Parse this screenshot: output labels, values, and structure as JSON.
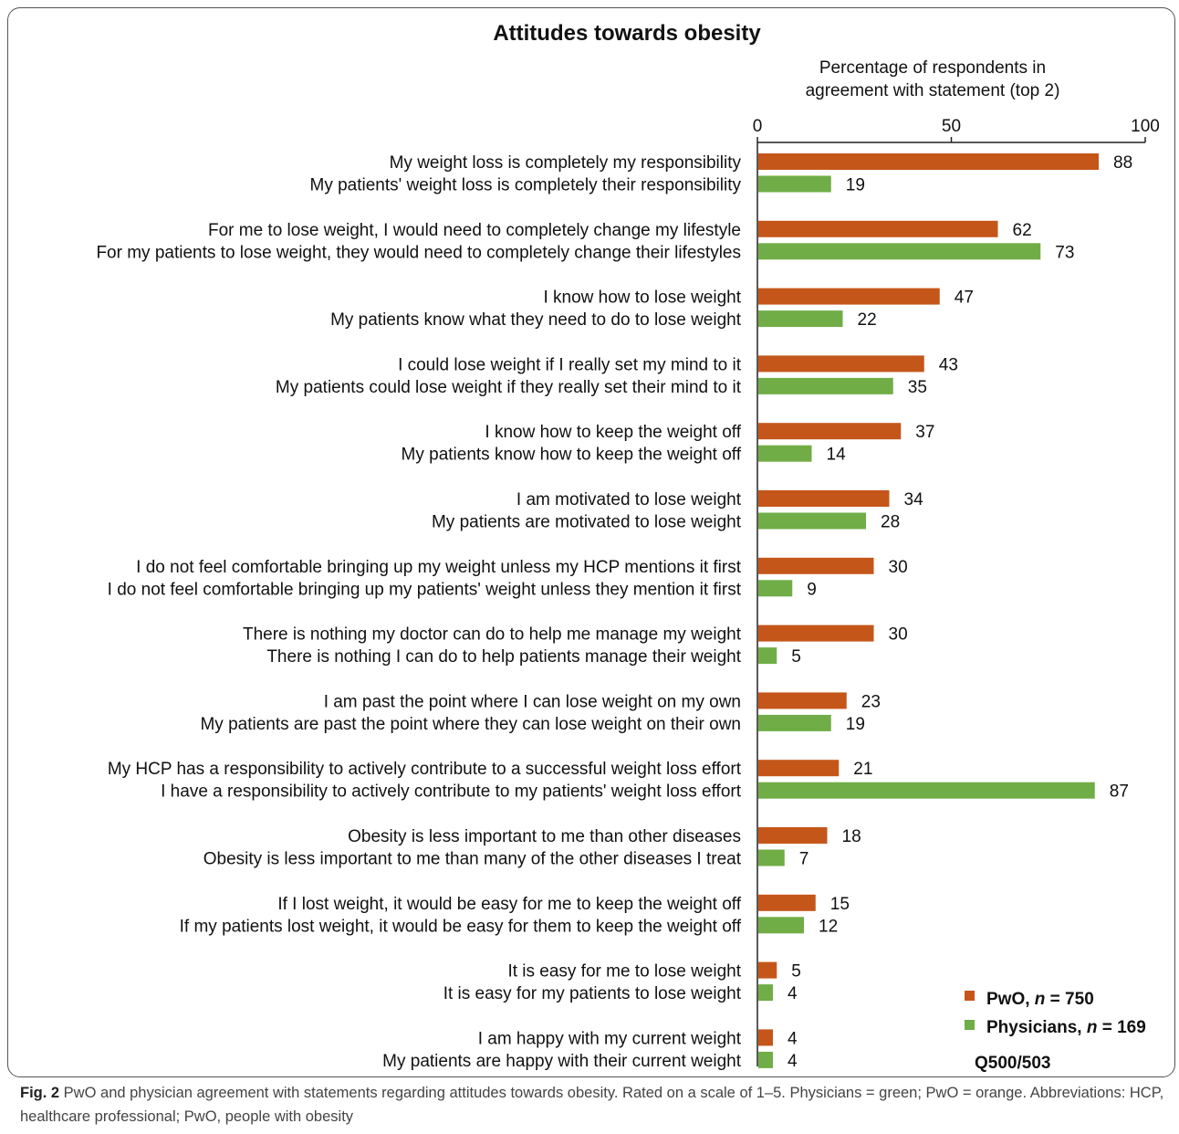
{
  "chart_data": {
    "type": "bar",
    "orientation": "horizontal",
    "title": "Attitudes towards obesity",
    "xlabel_lines": [
      "Percentage of respondents in",
      "agreement with statement (top 2)"
    ],
    "xlim": [
      0,
      100
    ],
    "xticks": [
      "0",
      "50",
      "100"
    ],
    "grid": false,
    "legend_placement": "bottom-right",
    "series": [
      {
        "key": "pwo",
        "name_prefix": "PwO, ",
        "name_n": "n",
        "name_suffix": " = 750",
        "color": "#c5561a"
      },
      {
        "key": "phys",
        "name_prefix": "Physicians, ",
        "name_n": "n",
        "name_suffix": " = 169",
        "color": "#70ad47"
      }
    ],
    "groups": [
      {
        "pwo_label": "My weight loss is completely my responsibility",
        "pwo": 88,
        "phys_label": "My patients' weight loss is completely their responsibility",
        "phys": 19
      },
      {
        "pwo_label": "For me to lose weight, I would need to completely change my lifestyle",
        "pwo": 62,
        "phys_label": "For my patients to lose weight, they would need to completely change their lifestyles",
        "phys": 73
      },
      {
        "pwo_label": "I know how to lose weight",
        "pwo": 47,
        "phys_label": "My patients know what they need to do to lose weight",
        "phys": 22
      },
      {
        "pwo_label": "I could lose weight if I really set my mind to it",
        "pwo": 43,
        "phys_label": "My patients could lose weight if they really set their mind to it",
        "phys": 35
      },
      {
        "pwo_label": "I know how to keep the weight off",
        "pwo": 37,
        "phys_label": "My patients know how to keep the weight off",
        "phys": 14
      },
      {
        "pwo_label": "I am motivated to lose weight",
        "pwo": 34,
        "phys_label": "My patients are motivated to lose weight",
        "phys": 28
      },
      {
        "pwo_label": "I do not feel comfortable bringing up my weight unless my HCP mentions it first",
        "pwo": 30,
        "phys_label": "I do not feel comfortable bringing up my patients' weight unless they mention it first",
        "phys": 9
      },
      {
        "pwo_label": "There is nothing my doctor can do to help me manage my weight",
        "pwo": 30,
        "phys_label": "There is nothing I can do to help patients manage their weight",
        "phys": 5
      },
      {
        "pwo_label": "I am past the point where I can lose weight on my own",
        "pwo": 23,
        "phys_label": "My patients are past the point where they can lose weight on their own",
        "phys": 19
      },
      {
        "pwo_label": "My HCP has a responsibility to actively contribute to a successful weight loss effort",
        "pwo": 21,
        "phys_label": "I have a responsibility to actively contribute to my patients' weight loss effort",
        "phys": 87
      },
      {
        "pwo_label": "Obesity is less important to me than other diseases",
        "pwo": 18,
        "phys_label": "Obesity is less important to me than many of the other diseases I treat",
        "phys": 7
      },
      {
        "pwo_label": "If I lost weight, it would be easy for me to keep the weight off",
        "pwo": 15,
        "phys_label": "If my patients lost weight, it would be easy for them to keep the weight off",
        "phys": 12
      },
      {
        "pwo_label": "It is easy for me to lose weight",
        "pwo": 5,
        "phys_label": "It is easy for my patients to lose weight",
        "phys": 4
      },
      {
        "pwo_label": "I am happy with my current weight",
        "pwo": 4,
        "phys_label": "My patients are happy with their current weight",
        "phys": 4
      }
    ],
    "source_note": "Q500/503"
  },
  "caption": {
    "label": "Fig. 2",
    "text": " PwO and physician agreement with statements regarding attitudes towards obesity. Rated on a scale of 1–5. Physicians = green; PwO = orange. Abbreviations: HCP, healthcare professional; PwO, people with obesity"
  }
}
